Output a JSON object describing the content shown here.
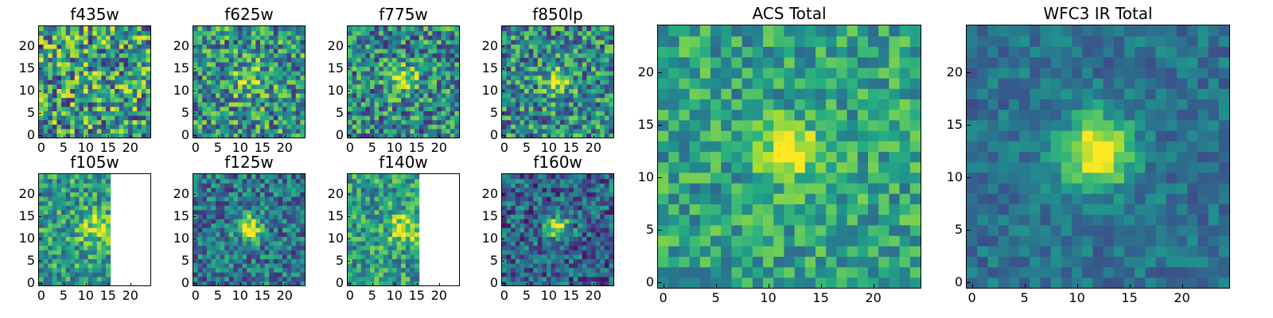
{
  "panels": [
    {
      "id": "f435w",
      "title": "f435w",
      "seed": 11,
      "peak": 0.05,
      "sigma": 2.6,
      "noise": 0.85,
      "base": 0.55,
      "cut": null
    },
    {
      "id": "f625w",
      "title": "f625w",
      "seed": 23,
      "peak": 0.28,
      "sigma": 2.6,
      "noise": 0.72,
      "base": 0.52,
      "cut": null
    },
    {
      "id": "f775w",
      "title": "f775w",
      "seed": 37,
      "peak": 0.45,
      "sigma": 2.2,
      "noise": 0.7,
      "base": 0.48,
      "cut": null
    },
    {
      "id": "f850lp",
      "title": "f850lp",
      "seed": 41,
      "peak": 0.42,
      "sigma": 2.2,
      "noise": 0.7,
      "base": 0.48,
      "cut": null
    },
    {
      "id": "f105w",
      "title": "f105w",
      "seed": 53,
      "peak": 0.3,
      "sigma": 2.8,
      "noise": 0.55,
      "base": 0.55,
      "cut": 16
    },
    {
      "id": "f125w",
      "title": "f125w",
      "seed": 67,
      "peak": 0.62,
      "sigma": 2.0,
      "noise": 0.55,
      "base": 0.4,
      "cut": null
    },
    {
      "id": "f140w",
      "title": "f140w",
      "seed": 71,
      "peak": 0.4,
      "sigma": 2.6,
      "noise": 0.55,
      "base": 0.55,
      "cut": 16
    },
    {
      "id": "f160w",
      "title": "f160w",
      "seed": 83,
      "peak": 0.68,
      "sigma": 1.8,
      "noise": 0.55,
      "base": 0.33,
      "cut": null
    },
    {
      "id": "acs-total",
      "title": "ACS Total",
      "seed": 97,
      "peak": 0.55,
      "sigma": 1.8,
      "noise": 0.45,
      "base": 0.58,
      "cut": null
    },
    {
      "id": "wfc3-total",
      "title": "WFC3 IR Total",
      "seed": 101,
      "peak": 0.75,
      "sigma": 2.3,
      "noise": 0.28,
      "base": 0.38,
      "cut": null
    }
  ],
  "small_x_ticks": [
    "0",
    "5",
    "10",
    "15",
    "20"
  ],
  "small_y_ticks": [
    "0",
    "5",
    "10",
    "15",
    "20"
  ],
  "large_x_ticks": [
    "0",
    "5",
    "10",
    "15",
    "20"
  ],
  "large_y_ticks": [
    "0",
    "5",
    "10",
    "15",
    "20"
  ],
  "grid_size": 25,
  "source_center": [
    12,
    12.5
  ],
  "colormap": "viridis"
}
